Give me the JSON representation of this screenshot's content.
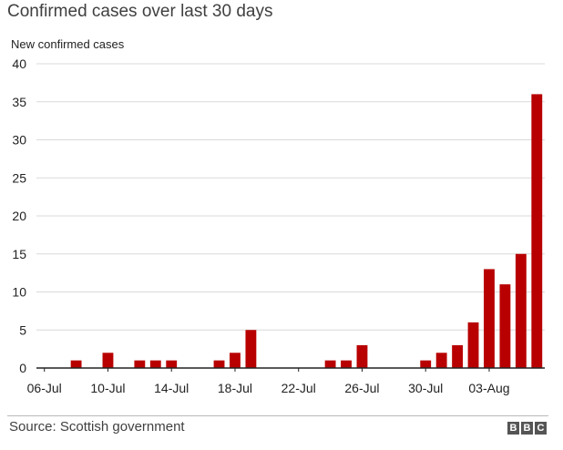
{
  "chart_data": {
    "type": "bar",
    "title": "Confirmed cases over last 30 days",
    "ylabel": "New confirmed cases",
    "xlabel": "",
    "ylim": [
      0,
      40
    ],
    "yticks": [
      0,
      5,
      10,
      15,
      20,
      25,
      30,
      35,
      40
    ],
    "grid": true,
    "categories": [
      "06-Jul",
      "07-Jul",
      "08-Jul",
      "09-Jul",
      "10-Jul",
      "11-Jul",
      "12-Jul",
      "13-Jul",
      "14-Jul",
      "15-Jul",
      "16-Jul",
      "17-Jul",
      "18-Jul",
      "19-Jul",
      "20-Jul",
      "21-Jul",
      "22-Jul",
      "23-Jul",
      "24-Jul",
      "25-Jul",
      "26-Jul",
      "27-Jul",
      "28-Jul",
      "29-Jul",
      "30-Jul",
      "31-Jul",
      "01-Aug",
      "02-Aug",
      "03-Aug",
      "04-Aug",
      "05-Aug",
      "06-Aug"
    ],
    "x_tick_labels": [
      "06-Jul",
      "10-Jul",
      "14-Jul",
      "18-Jul",
      "22-Jul",
      "26-Jul",
      "30-Jul",
      "03-Aug"
    ],
    "values": [
      0,
      0,
      1,
      0,
      2,
      0,
      1,
      1,
      1,
      0,
      0,
      1,
      2,
      5,
      0,
      0,
      0,
      0,
      1,
      1,
      3,
      0,
      0,
      0,
      1,
      2,
      3,
      6,
      13,
      11,
      15,
      36
    ],
    "bar_color": "#b80000"
  },
  "source": "Source: Scottish government",
  "logo": [
    "B",
    "B",
    "C"
  ]
}
